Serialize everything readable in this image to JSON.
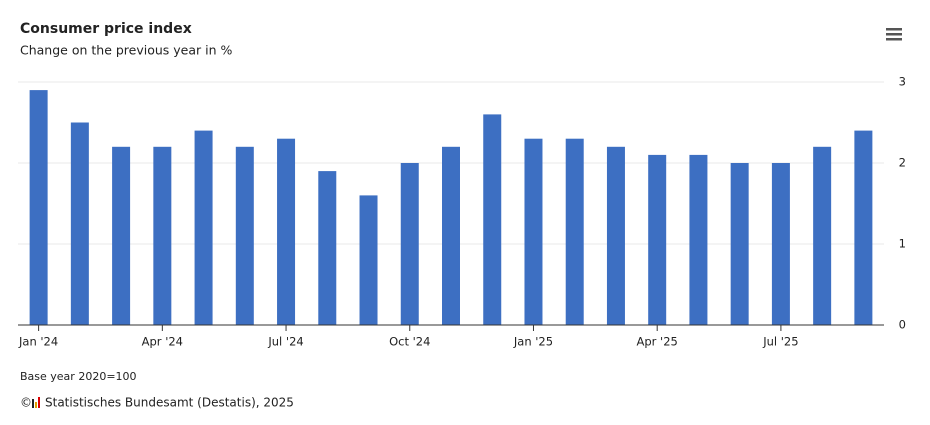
{
  "chart_data": {
    "type": "bar",
    "title": "Consumer price index",
    "subtitle": "Change on the previous year in %",
    "categories": [
      "Jan '24",
      null,
      null,
      "Apr '24",
      null,
      null,
      "Jul '24",
      null,
      null,
      "Oct '24",
      null,
      null,
      "Jan '25",
      null,
      null,
      "Apr '25",
      null,
      null,
      "Jul '25",
      null,
      null
    ],
    "values": [
      2.9,
      2.5,
      2.2,
      2.2,
      2.4,
      2.2,
      2.3,
      1.9,
      1.6,
      2.0,
      2.2,
      2.6,
      2.3,
      2.3,
      2.2,
      2.1,
      2.1,
      2.0,
      2.0,
      2.2,
      2.4
    ],
    "color": "#3d6fc2",
    "ylim": [
      0,
      3
    ],
    "yticks": [
      0,
      1,
      2,
      3
    ],
    "grid": true,
    "note": "Base year 2020=100",
    "copyright": "©",
    "source": "Statistisches Bundesamt (Destatis), 2025"
  }
}
